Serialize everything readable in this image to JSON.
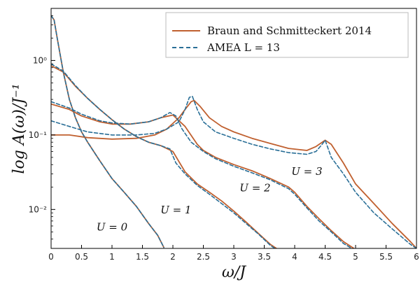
{
  "chart_data": {
    "type": "line",
    "xlabel": "ω/J",
    "ylabel": "log A(ω)/J⁻¹",
    "xlim": [
      0,
      6
    ],
    "ylim": [
      0.003,
      5
    ],
    "y_scale": "log",
    "x_ticks": [
      "0",
      "0.5",
      "1",
      "1.5",
      "2",
      "2.5",
      "3",
      "3.5",
      "4",
      "4.5",
      "5",
      "5.5",
      "6"
    ],
    "y_tick_labels": [
      "10⁻²",
      "10⁻¹",
      "10⁰"
    ],
    "y_tick_values": [
      0.01,
      0.1,
      1
    ],
    "grid": false,
    "legend_position": "top-right",
    "legend": [
      {
        "label": "Braun and Schmitteckert 2014",
        "style": "solid",
        "color": "#c0602f"
      },
      {
        "label": "AMEA L = 13",
        "style": "dashed",
        "color": "#2a6f97"
      }
    ],
    "annotations": [
      {
        "text": "U = 0",
        "x": 1.0,
        "y": 0.0052
      },
      {
        "text": "U = 1",
        "x": 2.05,
        "y": 0.0088
      },
      {
        "text": "U = 2",
        "x": 3.35,
        "y": 0.0175
      },
      {
        "text": "U = 3",
        "x": 4.2,
        "y": 0.029
      }
    ],
    "series": [
      {
        "curve": "U = 0",
        "source": "Braun and Schmitteckert 2014",
        "style": "solid",
        "color": "#c0602f",
        "x": [
          0,
          0.05,
          0.1,
          0.2,
          0.3,
          0.4,
          0.5,
          0.6,
          0.8,
          1.0,
          1.2,
          1.4,
          1.6,
          1.75,
          1.85
        ],
        "y": [
          4.0,
          3.5,
          2.0,
          0.7,
          0.3,
          0.17,
          0.11,
          0.08,
          0.045,
          0.026,
          0.017,
          0.011,
          0.0065,
          0.0045,
          0.0031
        ]
      },
      {
        "curve": "U = 0",
        "source": "AMEA L = 13",
        "style": "dashed",
        "color": "#2a6f97",
        "x": [
          0,
          0.05,
          0.1,
          0.2,
          0.3,
          0.4,
          0.5,
          0.6,
          0.8,
          1.0,
          1.2,
          1.4,
          1.6,
          1.75,
          1.85
        ],
        "y": [
          4.0,
          3.5,
          2.0,
          0.7,
          0.3,
          0.17,
          0.11,
          0.08,
          0.045,
          0.026,
          0.017,
          0.011,
          0.0065,
          0.0045,
          0.0031
        ]
      },
      {
        "curve": "U = 1",
        "source": "Braun and Schmitteckert 2014",
        "style": "solid",
        "color": "#c0602f",
        "x": [
          0,
          0.2,
          0.4,
          0.6,
          0.8,
          1.0,
          1.2,
          1.4,
          1.6,
          1.8,
          2.0,
          2.2,
          2.4,
          2.6,
          2.8,
          3.0,
          3.2,
          3.4,
          3.6,
          3.7
        ],
        "y": [
          0.85,
          0.7,
          0.45,
          0.31,
          0.22,
          0.16,
          0.12,
          0.095,
          0.08,
          0.072,
          0.06,
          0.032,
          0.022,
          0.017,
          0.013,
          0.0095,
          0.0068,
          0.0048,
          0.0034,
          0.003
        ]
      },
      {
        "curve": "U = 1",
        "source": "AMEA L = 13",
        "style": "dashed",
        "color": "#2a6f97",
        "x": [
          0,
          0.2,
          0.4,
          0.6,
          0.8,
          1.0,
          1.2,
          1.4,
          1.6,
          1.8,
          1.95,
          2.05,
          2.2,
          2.4,
          2.6,
          2.8,
          3.0,
          3.2,
          3.4,
          3.6,
          3.7
        ],
        "y": [
          0.9,
          0.72,
          0.46,
          0.31,
          0.22,
          0.16,
          0.12,
          0.095,
          0.08,
          0.072,
          0.065,
          0.042,
          0.03,
          0.021,
          0.016,
          0.012,
          0.009,
          0.0065,
          0.0047,
          0.0033,
          0.0029
        ]
      },
      {
        "curve": "U = 2",
        "source": "Braun and Schmitteckert 2014",
        "style": "solid",
        "color": "#c0602f",
        "x": [
          0,
          0.3,
          0.5,
          0.8,
          1.0,
          1.3,
          1.6,
          1.8,
          2.0,
          2.2,
          2.4,
          2.5,
          2.7,
          3.0,
          3.3,
          3.6,
          3.9,
          4.0,
          4.2,
          4.4,
          4.6,
          4.8,
          5.0
        ],
        "y": [
          0.26,
          0.22,
          0.18,
          0.15,
          0.14,
          0.14,
          0.15,
          0.17,
          0.185,
          0.13,
          0.075,
          0.062,
          0.05,
          0.04,
          0.033,
          0.026,
          0.02,
          0.017,
          0.011,
          0.0075,
          0.0052,
          0.0037,
          0.0029
        ]
      },
      {
        "curve": "U = 2",
        "source": "AMEA L = 13",
        "style": "dashed",
        "color": "#2a6f97",
        "x": [
          0,
          0.3,
          0.5,
          0.8,
          1.0,
          1.3,
          1.6,
          1.8,
          1.95,
          2.05,
          2.15,
          2.3,
          2.5,
          2.7,
          3.0,
          3.3,
          3.6,
          3.9,
          4.0,
          4.2,
          4.4,
          4.6,
          4.8,
          5.0
        ],
        "y": [
          0.28,
          0.23,
          0.19,
          0.155,
          0.145,
          0.14,
          0.15,
          0.17,
          0.2,
          0.18,
          0.12,
          0.08,
          0.06,
          0.048,
          0.038,
          0.031,
          0.025,
          0.019,
          0.016,
          0.0105,
          0.007,
          0.005,
          0.0035,
          0.0028
        ]
      },
      {
        "curve": "U = 3",
        "source": "Braun and Schmitteckert 2014",
        "style": "solid",
        "color": "#c0602f",
        "x": [
          0,
          0.3,
          0.6,
          1.0,
          1.4,
          1.7,
          1.9,
          2.1,
          2.2,
          2.3,
          2.35,
          2.45,
          2.6,
          2.8,
          3.0,
          3.3,
          3.6,
          3.9,
          4.2,
          4.35,
          4.5,
          4.6,
          4.8,
          5.0,
          5.3,
          5.6,
          5.9,
          6.0
        ],
        "y": [
          0.1,
          0.1,
          0.092,
          0.088,
          0.09,
          0.1,
          0.12,
          0.17,
          0.22,
          0.28,
          0.29,
          0.24,
          0.17,
          0.13,
          0.11,
          0.09,
          0.077,
          0.066,
          0.062,
          0.07,
          0.085,
          0.075,
          0.042,
          0.022,
          0.012,
          0.0065,
          0.0037,
          0.003
        ]
      },
      {
        "curve": "U = 3",
        "source": "AMEA L = 13",
        "style": "dashed",
        "color": "#2a6f97",
        "x": [
          0,
          0.3,
          0.6,
          1.0,
          1.4,
          1.7,
          1.9,
          2.1,
          2.2,
          2.27,
          2.32,
          2.4,
          2.5,
          2.7,
          3.0,
          3.3,
          3.6,
          3.9,
          4.2,
          4.35,
          4.45,
          4.5,
          4.6,
          4.8,
          5.0,
          5.3,
          5.6,
          5.9,
          6.0
        ],
        "y": [
          0.155,
          0.13,
          0.11,
          0.1,
          0.1,
          0.105,
          0.12,
          0.15,
          0.22,
          0.32,
          0.33,
          0.22,
          0.15,
          0.11,
          0.09,
          0.075,
          0.065,
          0.058,
          0.055,
          0.06,
          0.075,
          0.085,
          0.05,
          0.03,
          0.017,
          0.009,
          0.0055,
          0.0034,
          0.003
        ]
      }
    ]
  }
}
